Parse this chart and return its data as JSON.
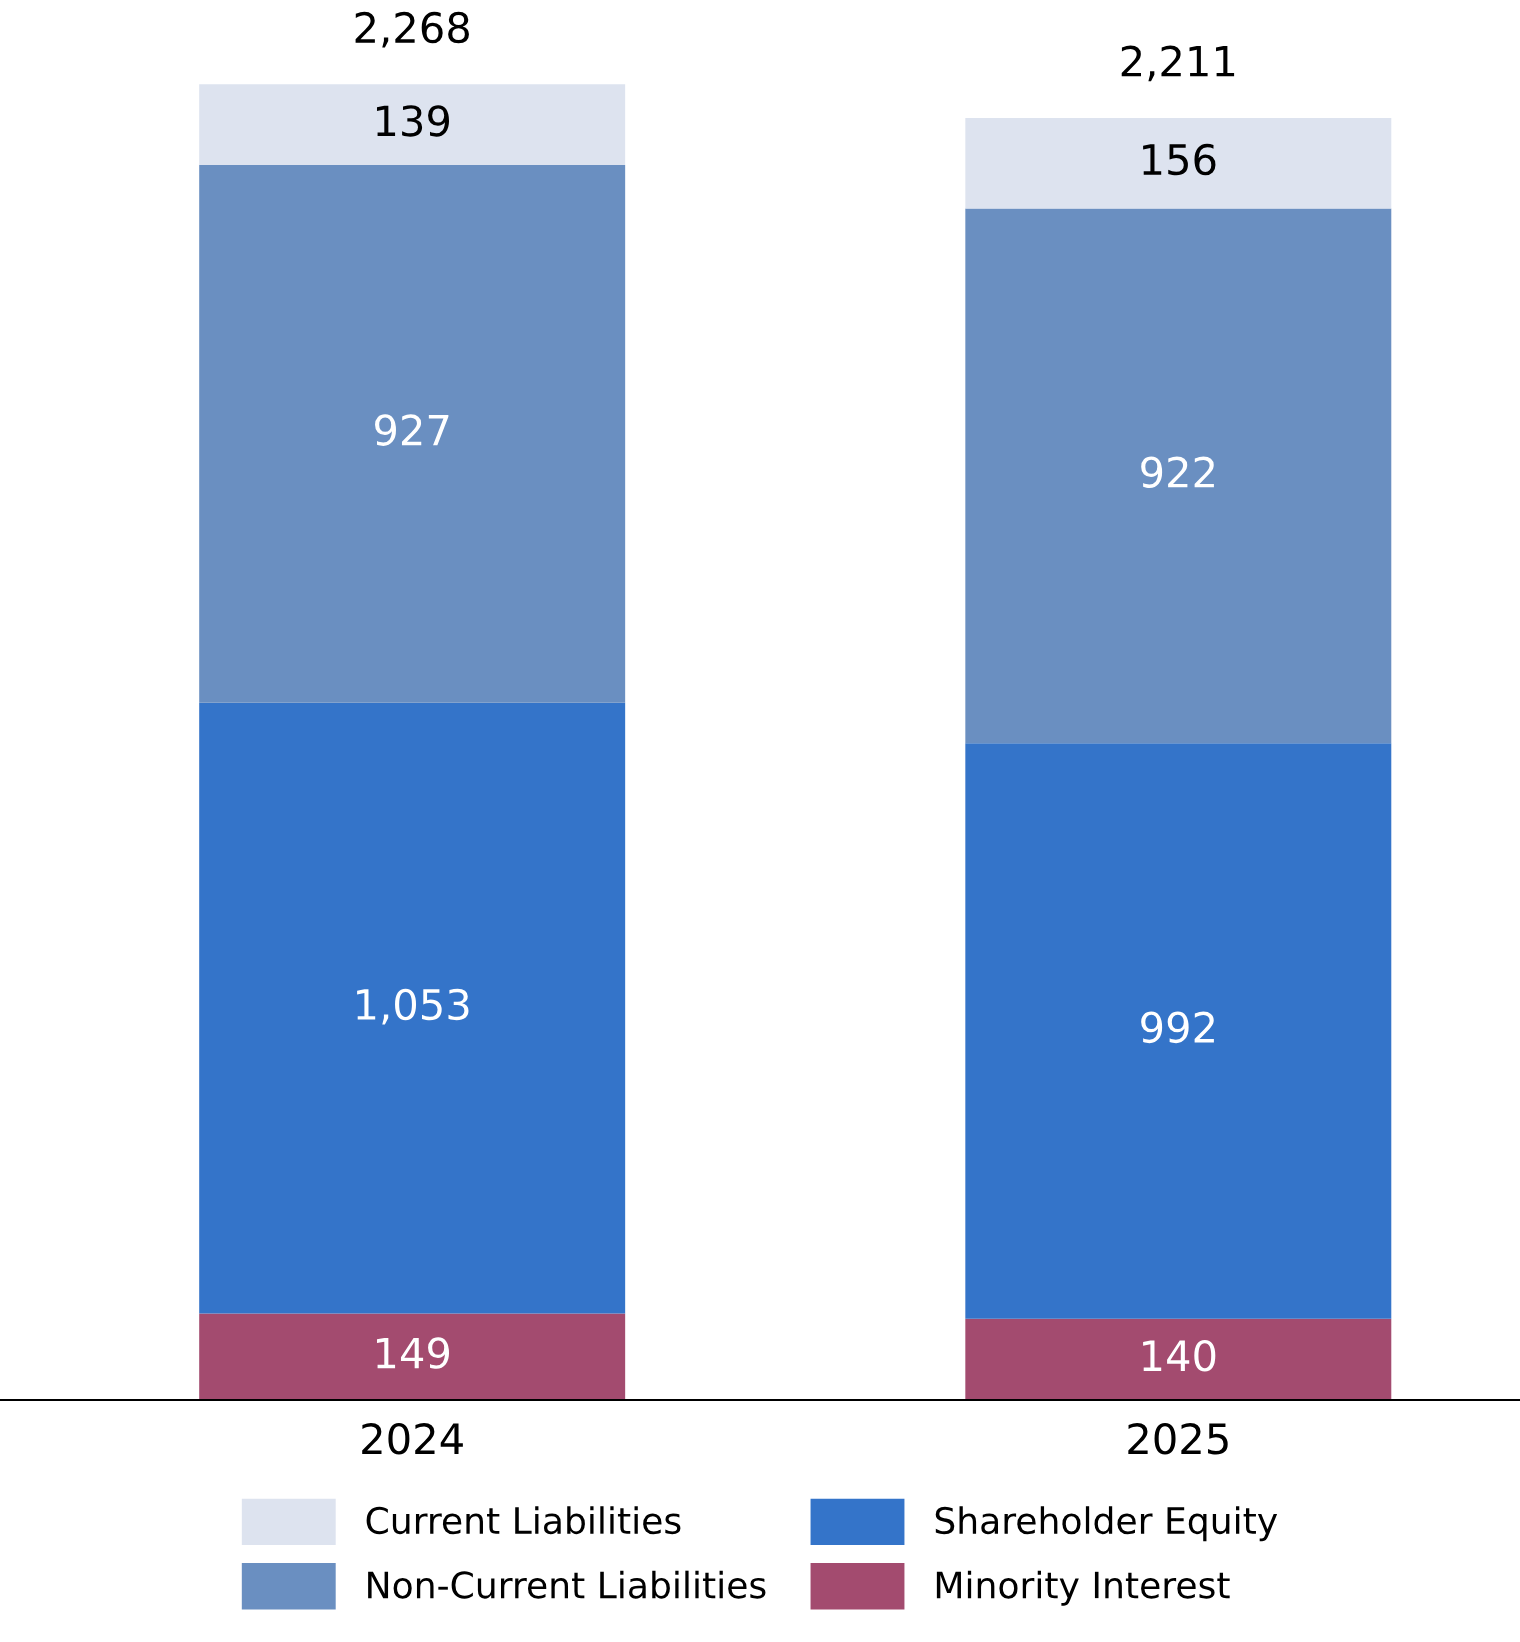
{
  "chart_data": {
    "type": "bar",
    "stacked": true,
    "categories": [
      "2024",
      "2025"
    ],
    "series": [
      {
        "name": "Minority Interest",
        "color": "#a34b6f",
        "values": [
          149,
          140
        ],
        "value_labels": [
          "149",
          "140"
        ]
      },
      {
        "name": "Shareholder Equity",
        "color": "#3474c9",
        "values": [
          1053,
          992
        ],
        "value_labels": [
          "1,053",
          "992"
        ]
      },
      {
        "name": "Non-Current Liabilities",
        "color": "#6a8fc1",
        "values": [
          927,
          922
        ],
        "value_labels": [
          "927",
          "922"
        ]
      },
      {
        "name": "Current Liabilities",
        "color": "#dde3ef",
        "values": [
          139,
          156
        ],
        "value_labels": [
          "139",
          "156"
        ]
      }
    ],
    "totals": [
      "2,268",
      "2,211"
    ],
    "grid": false,
    "legend": "bottom"
  }
}
